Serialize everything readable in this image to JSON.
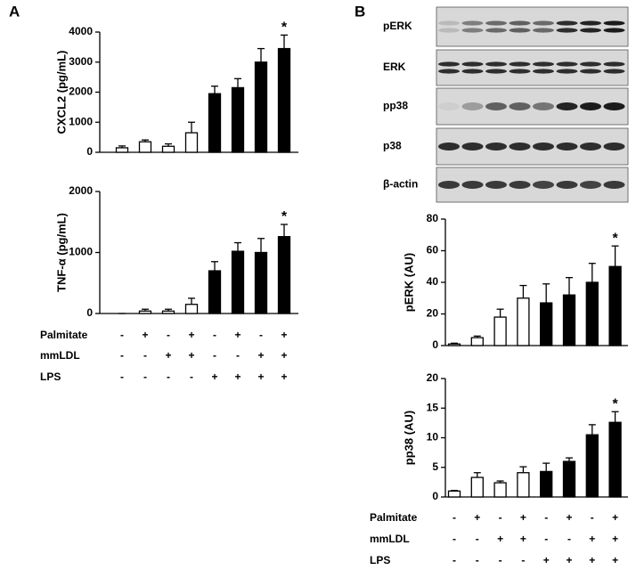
{
  "panel_labels": [
    "A",
    "B"
  ],
  "blot": {
    "labels": [
      "pERK",
      "ERK",
      "pp38",
      "p38",
      "β-actin"
    ]
  },
  "conditions": [
    {
      "rows": [
        {
          "label": "Palmitate",
          "signs": [
            "-",
            "+",
            "-",
            "+",
            "-",
            "+",
            "-",
            "+"
          ]
        },
        {
          "label": "mmLDL",
          "signs": [
            "-",
            "-",
            "+",
            "+",
            "-",
            "-",
            "+",
            "+"
          ]
        },
        {
          "label": "LPS",
          "signs": [
            "-",
            "-",
            "-",
            "-",
            "+",
            "+",
            "+",
            "+"
          ]
        }
      ]
    },
    {
      "rows": [
        {
          "label": "Palmitate",
          "signs": [
            "-",
            "+",
            "-",
            "+",
            "-",
            "+",
            "-",
            "+"
          ]
        },
        {
          "label": "mmLDL",
          "signs": [
            "-",
            "-",
            "+",
            "+",
            "-",
            "-",
            "+",
            "+"
          ]
        },
        {
          "label": "LPS",
          "signs": [
            "-",
            "-",
            "-",
            "-",
            "+",
            "+",
            "+",
            "+"
          ]
        }
      ]
    }
  ],
  "chart_data": [
    {
      "type": "bar",
      "y_label": "CXCL2 (pg/mL)",
      "categories": [
        null,
        null,
        null,
        null,
        null,
        null,
        null,
        null
      ],
      "values": [
        150,
        350,
        200,
        650,
        1950,
        2150,
        3000,
        3450
      ],
      "errors": [
        60,
        60,
        80,
        350,
        250,
        300,
        450,
        450
      ],
      "bar_fills": [
        "#ffffff",
        "#ffffff",
        "#ffffff",
        "#ffffff",
        "#000000",
        "#000000",
        "#000000",
        "#000000"
      ],
      "ylim": [
        0,
        4000
      ],
      "yticks": [
        0,
        1000,
        2000,
        3000,
        4000
      ],
      "annotations": [
        {
          "index": 7,
          "text": "*"
        }
      ]
    },
    {
      "type": "bar",
      "y_label": "TNF-α (pg/mL)",
      "categories": [
        null,
        null,
        null,
        null,
        null,
        null,
        null,
        null
      ],
      "values": [
        0,
        40,
        40,
        150,
        700,
        1020,
        1000,
        1260
      ],
      "errors": [
        0,
        30,
        30,
        100,
        150,
        140,
        230,
        200
      ],
      "bar_fills": [
        "#ffffff",
        "#ffffff",
        "#ffffff",
        "#ffffff",
        "#000000",
        "#000000",
        "#000000",
        "#000000"
      ],
      "ylim": [
        0,
        2000
      ],
      "yticks": [
        0,
        1000,
        2000
      ],
      "annotations": [
        {
          "index": 7,
          "text": "*"
        }
      ]
    },
    {
      "type": "bar",
      "y_label": "pERK (AU)",
      "categories": [
        null,
        null,
        null,
        null,
        null,
        null,
        null,
        null
      ],
      "values": [
        1,
        5,
        18,
        30,
        27,
        32,
        40,
        50
      ],
      "errors": [
        0.5,
        1,
        5,
        8,
        12,
        11,
        12,
        13
      ],
      "bar_fills": [
        "#ffffff",
        "#ffffff",
        "#ffffff",
        "#ffffff",
        "#000000",
        "#000000",
        "#000000",
        "#000000"
      ],
      "ylim": [
        0,
        80
      ],
      "yticks": [
        0,
        20,
        40,
        60,
        80
      ],
      "annotations": [
        {
          "index": 7,
          "text": "*"
        }
      ]
    },
    {
      "type": "bar",
      "y_label": "pp38 (AU)",
      "categories": [
        null,
        null,
        null,
        null,
        null,
        null,
        null,
        null
      ],
      "values": [
        1,
        3.3,
        2.4,
        4.1,
        4.3,
        6,
        10.5,
        12.6
      ],
      "errors": [
        0.1,
        0.8,
        0.3,
        1,
        1.4,
        0.6,
        1.7,
        1.8
      ],
      "bar_fills": [
        "#ffffff",
        "#ffffff",
        "#ffffff",
        "#ffffff",
        "#000000",
        "#000000",
        "#000000",
        "#000000"
      ],
      "ylim": [
        0,
        20
      ],
      "yticks": [
        0,
        5,
        10,
        15,
        20
      ],
      "annotations": [
        {
          "index": 7,
          "text": "*"
        }
      ]
    }
  ]
}
